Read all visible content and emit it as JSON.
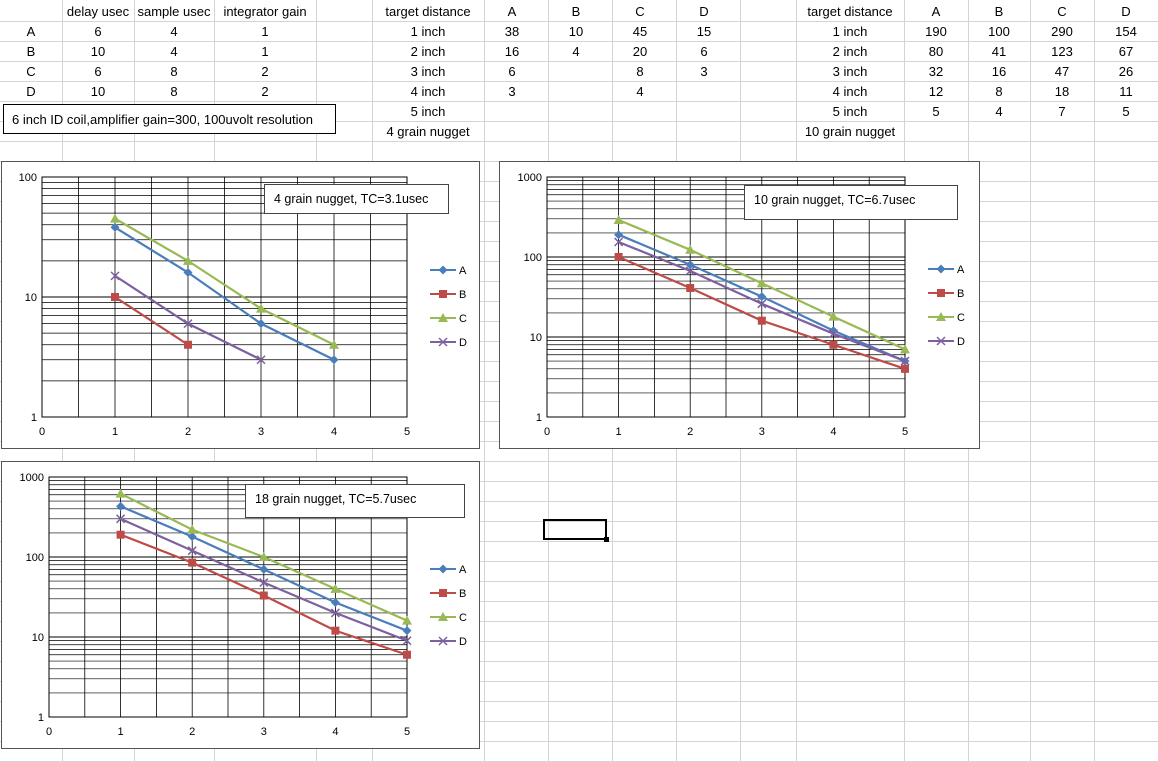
{
  "settings_table": {
    "headers": [
      "delay usec",
      "sample usec",
      "integrator gain"
    ],
    "rows": [
      {
        "label": "A",
        "values": [
          "6",
          "4",
          "1"
        ]
      },
      {
        "label": "B",
        "values": [
          "10",
          "4",
          "1"
        ]
      },
      {
        "label": "C",
        "values": [
          "6",
          "8",
          "2"
        ]
      },
      {
        "label": "D",
        "values": [
          "10",
          "8",
          "2"
        ]
      }
    ]
  },
  "note": "6 inch ID coil,amplifier gain=300, 100uvolt resolution",
  "table_4grain": {
    "header": "target distance",
    "columns": [
      "A",
      "B",
      "C",
      "D"
    ],
    "rows": [
      {
        "label": "1 inch",
        "values": [
          "38",
          "10",
          "45",
          "15"
        ]
      },
      {
        "label": "2 inch",
        "values": [
          "16",
          "4",
          "20",
          "6"
        ]
      },
      {
        "label": "3 inch",
        "values": [
          "6",
          "",
          "8",
          "3"
        ]
      },
      {
        "label": "4 inch",
        "values": [
          "3",
          "",
          "4",
          ""
        ]
      },
      {
        "label": "5 inch",
        "values": [
          "",
          "",
          "",
          ""
        ]
      }
    ],
    "footer": "4 grain nugget"
  },
  "table_10grain": {
    "header": "target distance",
    "columns": [
      "A",
      "B",
      "C",
      "D"
    ],
    "rows": [
      {
        "label": "1 inch",
        "values": [
          "190",
          "100",
          "290",
          "154"
        ]
      },
      {
        "label": "2 inch",
        "values": [
          "80",
          "41",
          "123",
          "67"
        ]
      },
      {
        "label": "3 inch",
        "values": [
          "32",
          "16",
          "47",
          "26"
        ]
      },
      {
        "label": "4 inch",
        "values": [
          "12",
          "8",
          "18",
          "11"
        ]
      },
      {
        "label": "5 inch",
        "values": [
          "5",
          "4",
          "7",
          "5"
        ]
      }
    ],
    "footer": "10 grain nugget"
  },
  "series_colors": {
    "A": "#4a7ebb",
    "B": "#be4b48",
    "C": "#98b954",
    "D": "#7d60a0"
  },
  "chart_data": [
    {
      "type": "line",
      "title": "4 grain nugget, TC=3.1usec",
      "x_ticks": [
        "0",
        "1",
        "2",
        "3",
        "4",
        "5"
      ],
      "y_ticks": [
        "1",
        "10",
        "100"
      ],
      "xlim": [
        0,
        5
      ],
      "ylim": [
        1,
        100
      ],
      "y_scale": "log",
      "legend": "right",
      "series": [
        {
          "name": "A",
          "x": [
            1,
            2,
            3,
            4
          ],
          "y": [
            38,
            16,
            6,
            3
          ]
        },
        {
          "name": "B",
          "x": [
            1,
            2
          ],
          "y": [
            10,
            4
          ]
        },
        {
          "name": "C",
          "x": [
            1,
            2,
            3,
            4
          ],
          "y": [
            45,
            20,
            8,
            4
          ]
        },
        {
          "name": "D",
          "x": [
            1,
            2,
            3
          ],
          "y": [
            15,
            6,
            3
          ]
        }
      ]
    },
    {
      "type": "line",
      "title": "10 grain nugget, TC=6.7usec",
      "x_ticks": [
        "0",
        "1",
        "2",
        "3",
        "4",
        "5"
      ],
      "y_ticks": [
        "1",
        "10",
        "100",
        "1000"
      ],
      "xlim": [
        0,
        5
      ],
      "ylim": [
        1,
        1000
      ],
      "y_scale": "log",
      "legend": "right",
      "series": [
        {
          "name": "A",
          "x": [
            1,
            2,
            3,
            4,
            5
          ],
          "y": [
            190,
            80,
            32,
            12,
            5
          ]
        },
        {
          "name": "B",
          "x": [
            1,
            2,
            3,
            4,
            5
          ],
          "y": [
            100,
            41,
            16,
            8,
            4
          ]
        },
        {
          "name": "C",
          "x": [
            1,
            2,
            3,
            4,
            5
          ],
          "y": [
            290,
            123,
            47,
            18,
            7
          ]
        },
        {
          "name": "D",
          "x": [
            1,
            2,
            3,
            4,
            5
          ],
          "y": [
            154,
            67,
            26,
            11,
            5
          ]
        }
      ]
    },
    {
      "type": "line",
      "title": "18 grain nugget, TC=5.7usec",
      "x_ticks": [
        "0",
        "1",
        "2",
        "3",
        "4",
        "5"
      ],
      "y_ticks": [
        "1",
        "10",
        "100",
        "1000"
      ],
      "xlim": [
        0,
        5
      ],
      "ylim": [
        1,
        1000
      ],
      "y_scale": "log",
      "legend": "right",
      "series": [
        {
          "name": "A",
          "x": [
            1,
            2,
            3,
            4,
            5
          ],
          "y": [
            430,
            180,
            70,
            27,
            12
          ]
        },
        {
          "name": "B",
          "x": [
            1,
            2,
            3,
            4,
            5
          ],
          "y": [
            190,
            85,
            33,
            12,
            6
          ]
        },
        {
          "name": "C",
          "x": [
            1,
            2,
            3,
            4,
            5
          ],
          "y": [
            620,
            220,
            100,
            40,
            16
          ]
        },
        {
          "name": "D",
          "x": [
            1,
            2,
            3,
            4,
            5
          ],
          "y": [
            300,
            120,
            48,
            20,
            9
          ]
        }
      ]
    }
  ]
}
